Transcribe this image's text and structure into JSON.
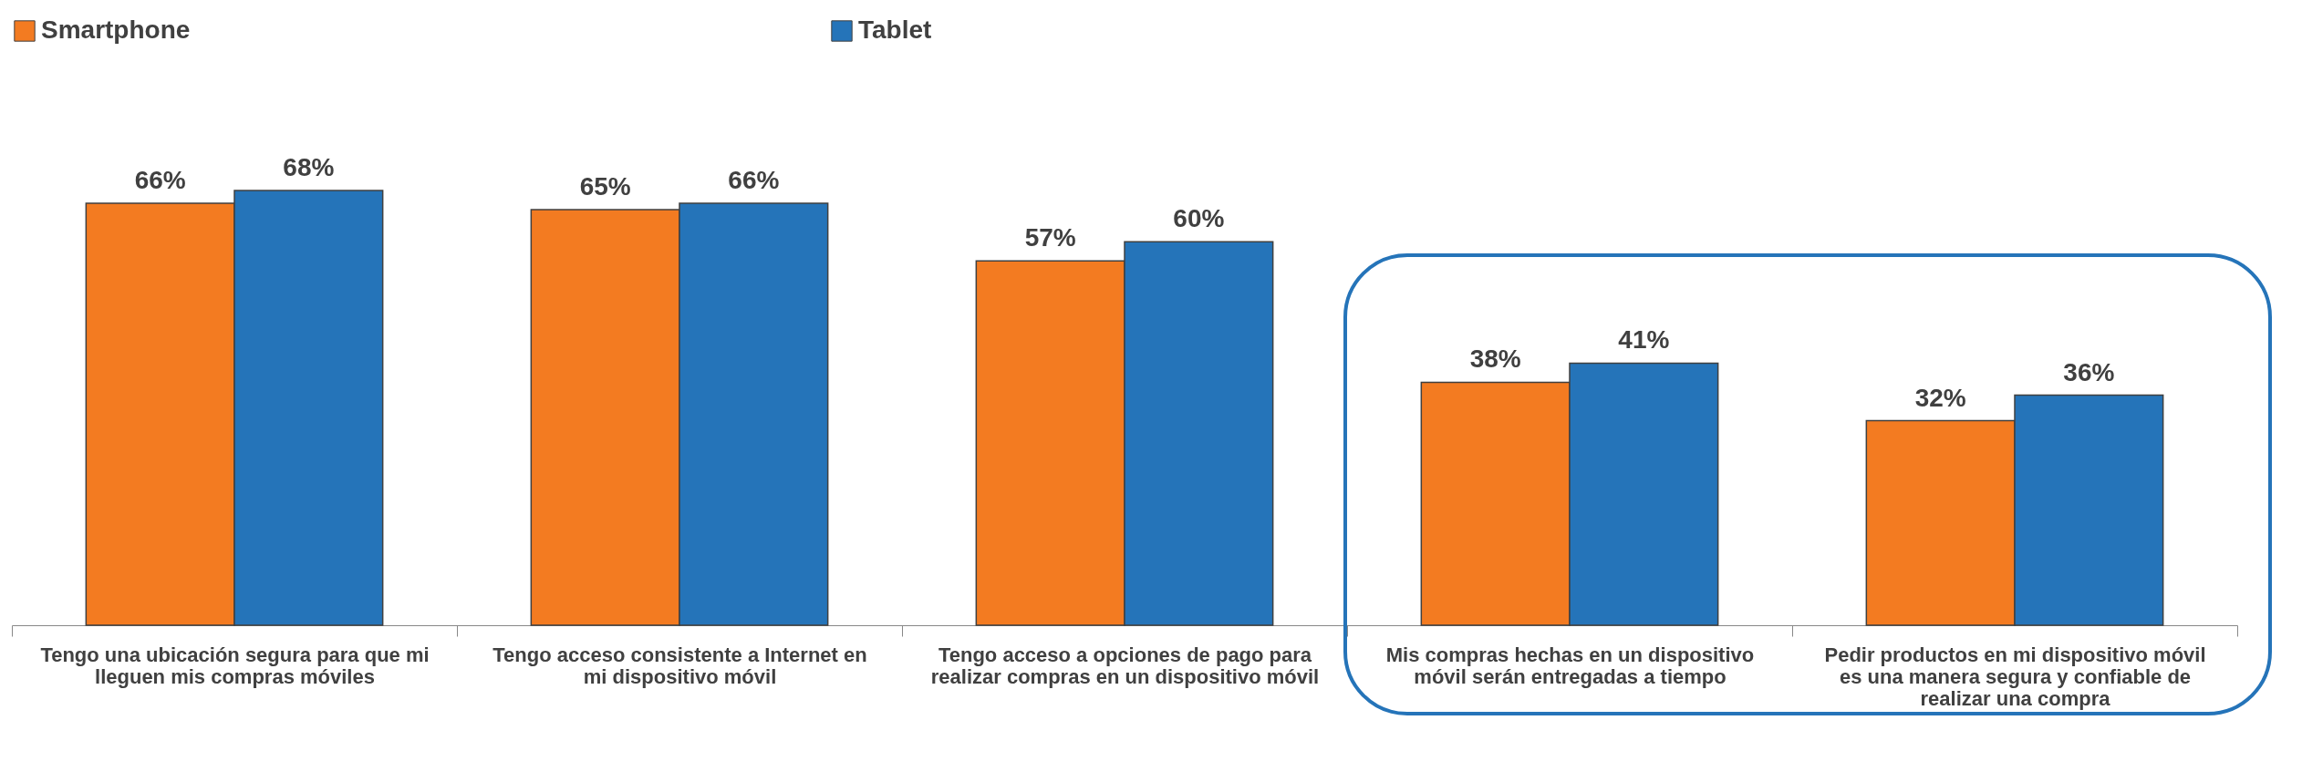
{
  "chart_data": {
    "type": "bar",
    "categories": [
      "Tengo una ubicación segura para que mi lleguen mis compras móviles",
      "Tengo acceso consistente a Internet en mi dispositivo móvil",
      "Tengo acceso a opciones de pago para realizar compras en un dispositivo móvil",
      "Mis compras hechas en un dispositivo móvil serán entregadas a tiempo",
      "Pedir productos en mi dispositivo móvil es una manera segura y confiable de realizar una compra"
    ],
    "series": [
      {
        "name": "Smartphone",
        "color": "#f37b21",
        "values": [
          66,
          65,
          57,
          38,
          32
        ],
        "value_labels": [
          "66%",
          "65%",
          "57%",
          "38%",
          "32%"
        ]
      },
      {
        "name": "Tablet",
        "color": "#2574b9",
        "values": [
          68,
          66,
          60,
          41,
          36
        ],
        "value_labels": [
          "68%",
          "66%",
          "60%",
          "41%",
          "36%"
        ]
      }
    ],
    "legend": "top",
    "grid": false
  }
}
